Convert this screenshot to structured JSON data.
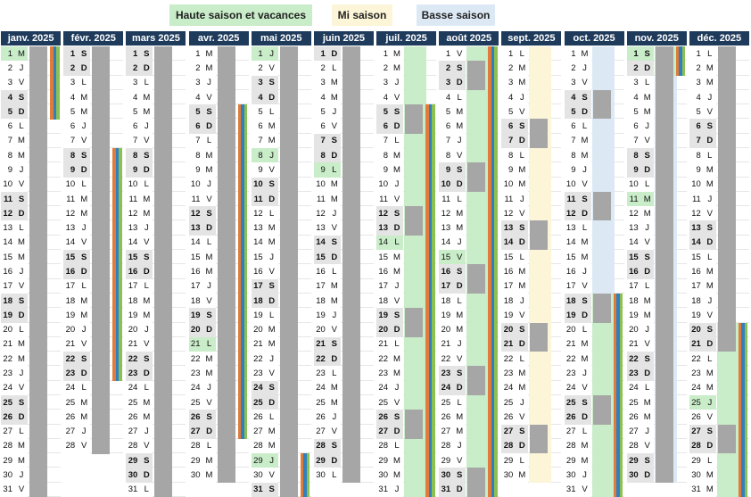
{
  "legend": [
    "Haute saison et vacances",
    "Mi saison",
    "Basse saison"
  ],
  "months": [
    {
      "name": "janv. 2025",
      "numbers": [
        1,
        2,
        3,
        4,
        5,
        6,
        7,
        8,
        9,
        10,
        11,
        12,
        13,
        14,
        15,
        16,
        17,
        18,
        19,
        20,
        21,
        22,
        23,
        24,
        25,
        26,
        27,
        28,
        29,
        30,
        31
      ],
      "letters": [
        "M",
        "J",
        "V",
        "S",
        "D",
        "L",
        "M",
        "M",
        "J",
        "V",
        "S",
        "D",
        "L",
        "M",
        "M",
        "J",
        "V",
        "S",
        "D",
        "L",
        "M",
        "M",
        "J",
        "V",
        "S",
        "D",
        "L",
        "M",
        "M",
        "J",
        "V"
      ]
    },
    {
      "name": "févr. 2025",
      "numbers": [
        1,
        2,
        3,
        4,
        5,
        6,
        7,
        8,
        9,
        10,
        11,
        12,
        13,
        14,
        15,
        16,
        17,
        18,
        19,
        20,
        21,
        22,
        23,
        24,
        25,
        26,
        27,
        28
      ],
      "letters": [
        "S",
        "D",
        "L",
        "M",
        "M",
        "J",
        "V",
        "S",
        "D",
        "L",
        "M",
        "M",
        "J",
        "V",
        "S",
        "D",
        "L",
        "M",
        "M",
        "J",
        "V",
        "S",
        "D",
        "L",
        "M",
        "M",
        "J",
        "V"
      ]
    },
    {
      "name": "mars 2025",
      "numbers": [
        1,
        2,
        3,
        4,
        5,
        6,
        7,
        8,
        9,
        10,
        11,
        12,
        13,
        14,
        15,
        16,
        17,
        18,
        19,
        20,
        21,
        22,
        23,
        24,
        25,
        26,
        27,
        28,
        29,
        30,
        31
      ],
      "letters": [
        "S",
        "D",
        "L",
        "M",
        "M",
        "J",
        "V",
        "S",
        "D",
        "L",
        "M",
        "M",
        "J",
        "V",
        "S",
        "D",
        "L",
        "M",
        "M",
        "J",
        "V",
        "S",
        "D",
        "L",
        "M",
        "M",
        "J",
        "V",
        "S",
        "D",
        "L"
      ]
    },
    {
      "name": "avr. 2025",
      "numbers": [
        1,
        2,
        3,
        4,
        5,
        6,
        7,
        8,
        9,
        10,
        11,
        12,
        13,
        14,
        15,
        16,
        17,
        18,
        19,
        20,
        21,
        22,
        23,
        24,
        25,
        26,
        27,
        28,
        29,
        30
      ],
      "letters": [
        "M",
        "M",
        "J",
        "V",
        "S",
        "D",
        "L",
        "M",
        "M",
        "J",
        "V",
        "S",
        "D",
        "L",
        "M",
        "M",
        "J",
        "V",
        "S",
        "D",
        "L",
        "M",
        "M",
        "J",
        "V",
        "S",
        "D",
        "L",
        "M",
        "M"
      ]
    },
    {
      "name": "mai 2025",
      "numbers": [
        1,
        2,
        3,
        4,
        5,
        6,
        7,
        8,
        9,
        10,
        11,
        12,
        13,
        14,
        15,
        16,
        17,
        18,
        19,
        20,
        21,
        22,
        23,
        24,
        25,
        26,
        27,
        28,
        29,
        30,
        31
      ],
      "letters": [
        "J",
        "V",
        "S",
        "D",
        "L",
        "M",
        "M",
        "J",
        "V",
        "S",
        "D",
        "L",
        "M",
        "M",
        "J",
        "V",
        "S",
        "D",
        "L",
        "M",
        "M",
        "J",
        "V",
        "S",
        "D",
        "L",
        "M",
        "M",
        "J",
        "V",
        "S"
      ]
    },
    {
      "name": "juin 2025",
      "numbers": [
        1,
        2,
        3,
        4,
        5,
        6,
        7,
        8,
        9,
        10,
        11,
        12,
        13,
        14,
        15,
        16,
        17,
        18,
        19,
        20,
        21,
        22,
        23,
        24,
        25,
        26,
        27,
        28,
        29,
        30
      ],
      "letters": [
        "D",
        "L",
        "M",
        "M",
        "J",
        "V",
        "S",
        "D",
        "L",
        "M",
        "M",
        "J",
        "V",
        "S",
        "D",
        "L",
        "M",
        "M",
        "J",
        "V",
        "S",
        "D",
        "L",
        "M",
        "M",
        "J",
        "V",
        "S",
        "D",
        "L"
      ]
    },
    {
      "name": "juil. 2025",
      "numbers": [
        1,
        2,
        3,
        4,
        5,
        6,
        7,
        8,
        9,
        10,
        11,
        12,
        13,
        14,
        15,
        16,
        17,
        18,
        19,
        20,
        21,
        22,
        23,
        24,
        25,
        26,
        27,
        28,
        29,
        30,
        31
      ],
      "letters": [
        "M",
        "M",
        "J",
        "V",
        "S",
        "D",
        "L",
        "M",
        "M",
        "J",
        "V",
        "S",
        "D",
        "L",
        "M",
        "M",
        "J",
        "V",
        "S",
        "D",
        "L",
        "M",
        "M",
        "J",
        "V",
        "S",
        "D",
        "L",
        "M",
        "M",
        "J"
      ]
    },
    {
      "name": "août 2025",
      "numbers": [
        1,
        2,
        3,
        4,
        5,
        6,
        7,
        8,
        9,
        10,
        11,
        12,
        13,
        14,
        15,
        16,
        17,
        18,
        19,
        20,
        21,
        22,
        23,
        24,
        25,
        26,
        27,
        28,
        29,
        30,
        31
      ],
      "letters": [
        "V",
        "S",
        "D",
        "L",
        "M",
        "M",
        "J",
        "V",
        "S",
        "D",
        "L",
        "M",
        "M",
        "J",
        "V",
        "S",
        "D",
        "L",
        "M",
        "M",
        "J",
        "V",
        "S",
        "D",
        "L",
        "M",
        "M",
        "J",
        "V",
        "S",
        "D"
      ]
    },
    {
      "name": "sept. 2025",
      "numbers": [
        1,
        2,
        3,
        4,
        5,
        6,
        7,
        8,
        9,
        10,
        11,
        12,
        13,
        14,
        15,
        16,
        17,
        18,
        19,
        20,
        21,
        22,
        23,
        24,
        25,
        26,
        27,
        28,
        29,
        30
      ],
      "letters": [
        "L",
        "M",
        "M",
        "J",
        "V",
        "S",
        "D",
        "L",
        "M",
        "M",
        "J",
        "V",
        "S",
        "D",
        "L",
        "M",
        "M",
        "J",
        "V",
        "S",
        "D",
        "L",
        "M",
        "M",
        "J",
        "V",
        "S",
        "D",
        "L",
        "M"
      ]
    },
    {
      "name": "oct. 2025",
      "numbers": [
        1,
        2,
        3,
        4,
        5,
        6,
        7,
        8,
        9,
        10,
        11,
        12,
        13,
        14,
        15,
        16,
        17,
        18,
        19,
        20,
        21,
        22,
        23,
        24,
        25,
        26,
        27,
        28,
        29,
        30,
        31
      ],
      "letters": [
        "M",
        "J",
        "V",
        "S",
        "D",
        "L",
        "M",
        "M",
        "J",
        "V",
        "S",
        "D",
        "L",
        "M",
        "M",
        "J",
        "V",
        "S",
        "D",
        "L",
        "M",
        "M",
        "J",
        "V",
        "S",
        "D",
        "L",
        "M",
        "M",
        "J",
        "V"
      ]
    },
    {
      "name": "nov. 2025",
      "numbers": [
        1,
        2,
        3,
        4,
        5,
        6,
        7,
        8,
        9,
        10,
        11,
        12,
        13,
        14,
        15,
        16,
        17,
        18,
        19,
        20,
        21,
        22,
        23,
        24,
        25,
        26,
        27,
        28,
        29,
        30
      ],
      "letters": [
        "S",
        "D",
        "L",
        "M",
        "M",
        "J",
        "V",
        "S",
        "D",
        "L",
        "M",
        "M",
        "J",
        "V",
        "S",
        "D",
        "L",
        "M",
        "M",
        "J",
        "V",
        "S",
        "D",
        "L",
        "M",
        "M",
        "J",
        "V",
        "S",
        "D"
      ]
    },
    {
      "name": "déc. 2025",
      "numbers": [
        1,
        2,
        3,
        4,
        5,
        6,
        7,
        8,
        9,
        10,
        11,
        12,
        13,
        14,
        15,
        16,
        17,
        18,
        19,
        20,
        21,
        22,
        23,
        24,
        25,
        26,
        27,
        28,
        29,
        30,
        31
      ],
      "letters": [
        "L",
        "M",
        "M",
        "J",
        "V",
        "S",
        "D",
        "L",
        "M",
        "M",
        "J",
        "V",
        "S",
        "D",
        "L",
        "M",
        "M",
        "J",
        "V",
        "S",
        "D",
        "L",
        "M",
        "M",
        "J",
        "V",
        "S",
        "D",
        "L",
        "M",
        "M"
      ]
    }
  ]
}
